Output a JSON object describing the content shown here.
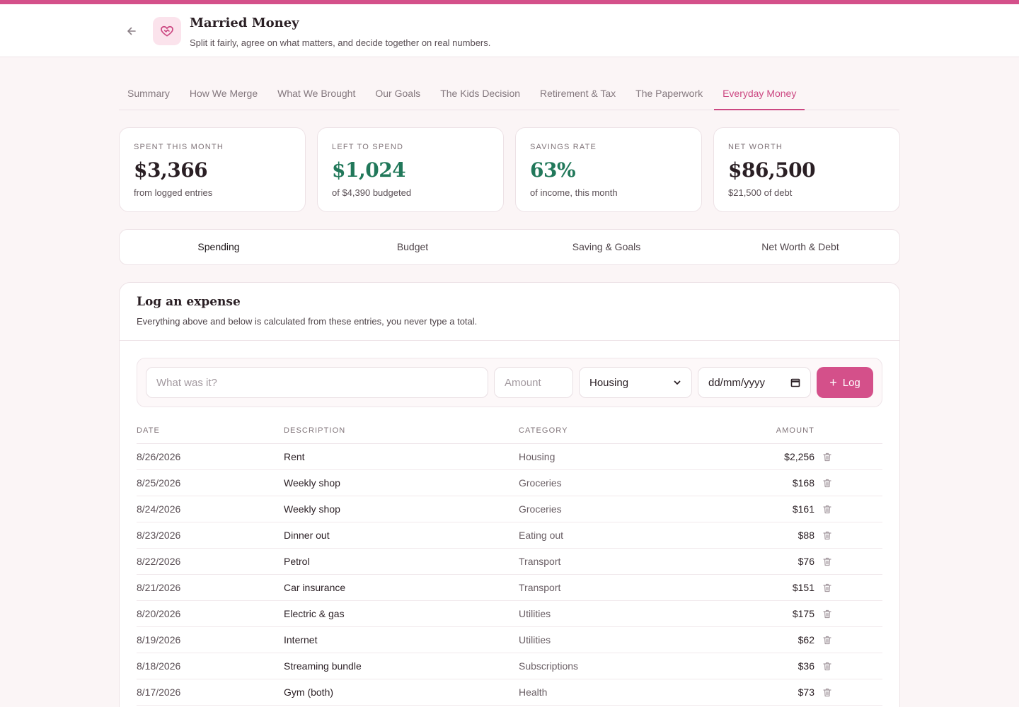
{
  "app": {
    "title": "Married Money",
    "subtitle": "Split it fairly, agree on what matters, and decide together on real numbers."
  },
  "colors": {
    "accent": "#d4508a",
    "positive": "#21785a"
  },
  "tabs": [
    {
      "label": "Summary"
    },
    {
      "label": "How We Merge"
    },
    {
      "label": "What We Brought"
    },
    {
      "label": "Our Goals"
    },
    {
      "label": "The Kids Decision"
    },
    {
      "label": "Retirement & Tax"
    },
    {
      "label": "The Paperwork"
    },
    {
      "label": "Everyday Money",
      "active": true
    }
  ],
  "stats": [
    {
      "label": "SPENT THIS MONTH",
      "value": "$3,366",
      "sub": "from logged entries"
    },
    {
      "label": "LEFT TO SPEND",
      "value": "$1,024",
      "sub": "of $4,390 budgeted"
    },
    {
      "label": "SAVINGS RATE",
      "value": "63%",
      "sub": "of income, this month"
    },
    {
      "label": "NET WORTH",
      "value": "$86,500",
      "sub": "$21,500 of debt"
    }
  ],
  "subtabs": [
    {
      "label": "Spending",
      "active": true
    },
    {
      "label": "Budget"
    },
    {
      "label": "Saving & Goals"
    },
    {
      "label": "Net Worth & Debt"
    }
  ],
  "panel": {
    "title": "Log an expense",
    "description": "Everything above and below is calculated from these entries, you never type a total."
  },
  "form": {
    "description_placeholder": "What was it?",
    "amount_placeholder": "Amount",
    "category_value": "Housing",
    "date_placeholder": "dd/mm/yyyy",
    "log_label": "Log"
  },
  "table": {
    "headers": {
      "date": "DATE",
      "description": "DESCRIPTION",
      "category": "CATEGORY",
      "amount": "AMOUNT"
    },
    "rows": [
      {
        "date": "8/26/2026",
        "description": "Rent",
        "category": "Housing",
        "amount": "$2,256"
      },
      {
        "date": "8/25/2026",
        "description": "Weekly shop",
        "category": "Groceries",
        "amount": "$168"
      },
      {
        "date": "8/24/2026",
        "description": "Weekly shop",
        "category": "Groceries",
        "amount": "$161"
      },
      {
        "date": "8/23/2026",
        "description": "Dinner out",
        "category": "Eating out",
        "amount": "$88"
      },
      {
        "date": "8/22/2026",
        "description": "Petrol",
        "category": "Transport",
        "amount": "$76"
      },
      {
        "date": "8/21/2026",
        "description": "Car insurance",
        "category": "Transport",
        "amount": "$151"
      },
      {
        "date": "8/20/2026",
        "description": "Electric & gas",
        "category": "Utilities",
        "amount": "$175"
      },
      {
        "date": "8/19/2026",
        "description": "Internet",
        "category": "Utilities",
        "amount": "$62"
      },
      {
        "date": "8/18/2026",
        "description": "Streaming bundle",
        "category": "Subscriptions",
        "amount": "$36"
      },
      {
        "date": "8/17/2026",
        "description": "Gym (both)",
        "category": "Health",
        "amount": "$73"
      }
    ]
  }
}
